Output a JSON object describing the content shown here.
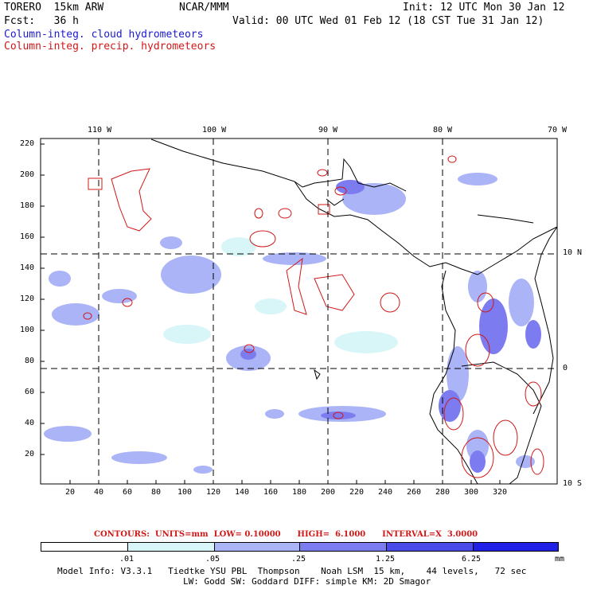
{
  "header": {
    "model": "TORERO  15km ARW",
    "center": "NCAR/MMM",
    "init": "Init: 12 UTC Mon 30 Jan 12",
    "fcst": "Fcst:   36 h",
    "valid": "Valid: 00 UTC Wed 01 Feb 12 (18 CST Tue 31 Jan 12)",
    "field1": "Column-integ. cloud hydrometeors",
    "field2": "Column-integ. precip. hydrometeors"
  },
  "colors": {
    "field1": "#1a1ad0",
    "field2": "#d01818",
    "land": "#000000",
    "grid": "#000000"
  },
  "map_axes": {
    "lon_labels": [
      "110 W",
      "100 W",
      "90 W",
      "80 W",
      "70 W"
    ],
    "lat_labels": [
      "10 N",
      "0",
      "10 S"
    ],
    "y_ticks": [
      "220",
      "200",
      "180",
      "160",
      "140",
      "120",
      "100",
      "80",
      "60",
      "40",
      "20"
    ],
    "x_ticks": [
      "20",
      "40",
      "60",
      "80",
      "100",
      "120",
      "140",
      "160",
      "180",
      "200",
      "220",
      "240",
      "260",
      "280",
      "300",
      "320"
    ]
  },
  "contours": {
    "label": "CONTOURS:  UNITS=mm  LOW= 0.10000      HIGH=  6.1000      INTERVAL=X  3.0000",
    "units": "mm",
    "low": 0.1,
    "high": 6.1,
    "interval_factor": 3.0
  },
  "legend": {
    "labels": [
      ".01",
      ".05",
      ".25",
      "1.25",
      "6.25"
    ],
    "unit": "mm",
    "colors": [
      "#ffffff",
      "#d8f6f8",
      "#aab4f6",
      "#7c7cf0",
      "#4a4ae8",
      "#2020e6"
    ]
  },
  "footer": {
    "line1": "Model Info: V3.3.1   Tiedtke YSU PBL  Thompson    Noah LSM  15 km,    44 levels,   72 sec",
    "line2": "LW: Godd SW: Goddard DIFF: simple KM: 2D Smagor"
  }
}
